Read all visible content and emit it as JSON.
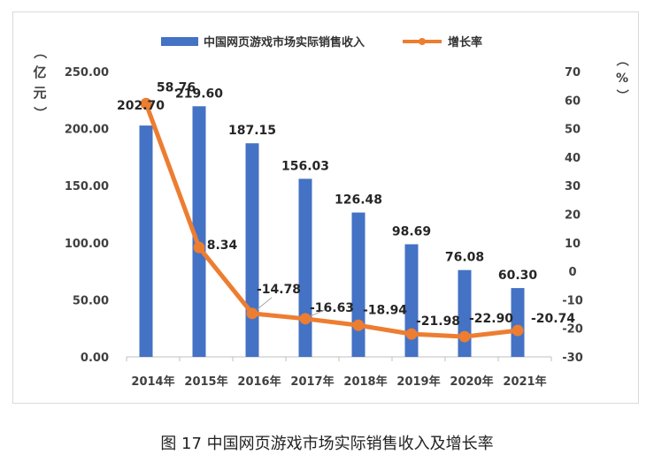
{
  "caption": "图 17 中国网页游戏市场实际销售收入及增长率",
  "chart_data": {
    "type": "bar",
    "categories": [
      "2014年",
      "2015年",
      "2016年",
      "2017年",
      "2018年",
      "2019年",
      "2020年",
      "2021年"
    ],
    "series": [
      {
        "name": "中国网页游戏市场实际销售收入",
        "type": "bar",
        "axis": "left",
        "color": "#4472c4",
        "values": [
          202.7,
          219.6,
          187.15,
          156.03,
          126.48,
          98.69,
          76.08,
          60.3
        ],
        "labels": [
          "202.70",
          "219.60",
          "187.15",
          "156.03",
          "126.48",
          "98.69",
          "76.08",
          "60.30"
        ]
      },
      {
        "name": "增长率",
        "type": "line",
        "axis": "right",
        "color": "#ed7d31",
        "values": [
          58.76,
          8.34,
          -14.78,
          -16.63,
          -18.94,
          -21.98,
          -22.9,
          -20.74
        ],
        "labels": [
          "58.76",
          "8.34",
          "-14.78",
          "-16.63",
          "-18.94",
          "-21.98",
          "-22.90",
          "-20.74"
        ]
      }
    ],
    "y_left": {
      "label": "（亿元）",
      "ylim": [
        0,
        250
      ],
      "ticks": [
        "0.00",
        "50.00",
        "100.00",
        "150.00",
        "200.00",
        "250.00"
      ]
    },
    "y_right": {
      "label": "（%）",
      "ylim": [
        -30,
        70
      ],
      "ticks": [
        "-30",
        "-20",
        "-10",
        "0",
        "10",
        "20",
        "30",
        "40",
        "50",
        "60",
        "70"
      ]
    },
    "legend": "top-center",
    "grid": false
  }
}
